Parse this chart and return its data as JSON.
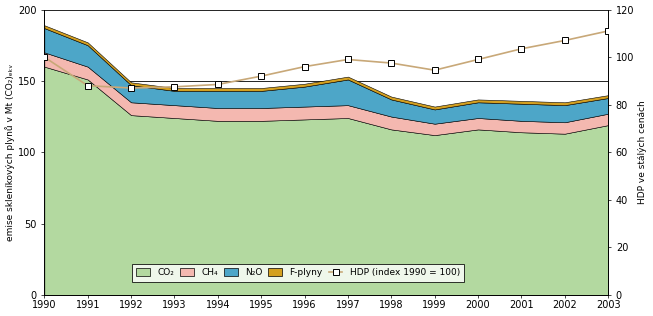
{
  "years": [
    1990,
    1991,
    1992,
    1993,
    1994,
    1995,
    1996,
    1997,
    1998,
    1999,
    2000,
    2001,
    2002,
    2003
  ],
  "CO2": [
    160,
    151,
    126,
    124,
    122,
    122,
    123,
    124,
    116,
    112,
    116,
    114,
    113,
    119
  ],
  "CH4": [
    10,
    9,
    9,
    9,
    9,
    9,
    9,
    9,
    9,
    8,
    8,
    8,
    8,
    8
  ],
  "N2O": [
    17,
    15,
    12,
    10,
    12,
    12,
    14,
    18,
    12,
    10,
    11,
    12,
    12,
    11
  ],
  "F_plyny": [
    2,
    2,
    2,
    2,
    2,
    2,
    2,
    2,
    2,
    2,
    2,
    2,
    2,
    2
  ],
  "HDP_years": [
    1990,
    1991,
    1992,
    1993,
    1994,
    1995,
    1996,
    1997,
    1998,
    1999,
    2000,
    2001,
    2002,
    2003
  ],
  "HDP_vals": [
    100,
    88.0,
    87.0,
    87.5,
    88.5,
    92.0,
    96.0,
    99.0,
    97.5,
    94.5,
    99.0,
    103.5,
    107.0,
    111.0
  ],
  "color_CO2": "#b3d9a0",
  "color_CH4": "#f4b8b0",
  "color_N2O": "#4da6c8",
  "color_Fplyny": "#d4a020",
  "color_HDP": "#c8a878",
  "ylabel_left": "emise skleníkových plynů v Mt (CO₂)ₑₖᵥ",
  "ylabel_right": "HDP ve stálých cenách",
  "ylim_left": [
    0,
    200
  ],
  "ylim_right": [
    0,
    120
  ],
  "yticks_left": [
    0,
    50,
    100,
    150,
    200
  ],
  "yticks_right": [
    0,
    20,
    40,
    60,
    80,
    100,
    120
  ],
  "hlines": [
    50,
    100,
    150,
    200
  ],
  "bg_color": "#ffffff",
  "legend_labels": [
    "CO₂",
    "CH₄",
    "N₂O",
    "F-plyny",
    "HDP (index 1990 = 100)"
  ]
}
